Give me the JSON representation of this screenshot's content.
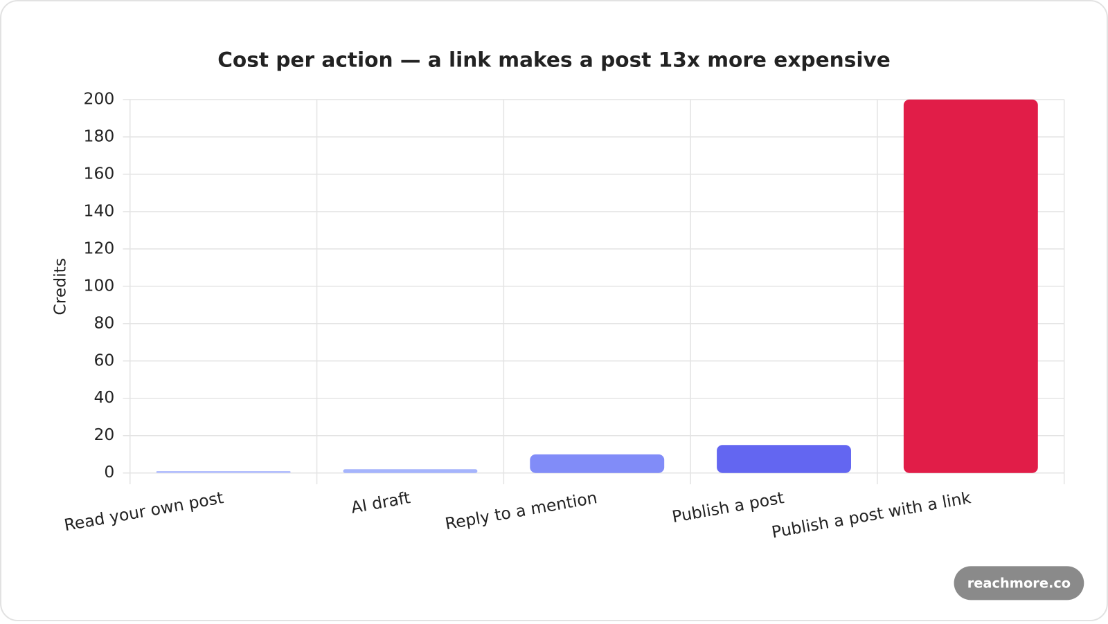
{
  "chart_data": {
    "type": "bar",
    "title": "Cost per action — a link makes a post 13x more expensive",
    "y_label": "Credits",
    "categories": [
      "Read your own post",
      "AI draft",
      "Reply to a mention",
      "Publish a post",
      "Publish a post with a link"
    ],
    "values": [
      1,
      2,
      10,
      15,
      200
    ],
    "colors": [
      "#b4bffd",
      "#a5b4fc",
      "#818cf8",
      "#6366f1",
      "#e11d48"
    ],
    "ylim": [
      0,
      200
    ],
    "yticks": [
      0,
      20,
      40,
      60,
      80,
      100,
      120,
      140,
      160,
      180,
      200
    ],
    "grid": true
  },
  "badge": "reachmore.co"
}
